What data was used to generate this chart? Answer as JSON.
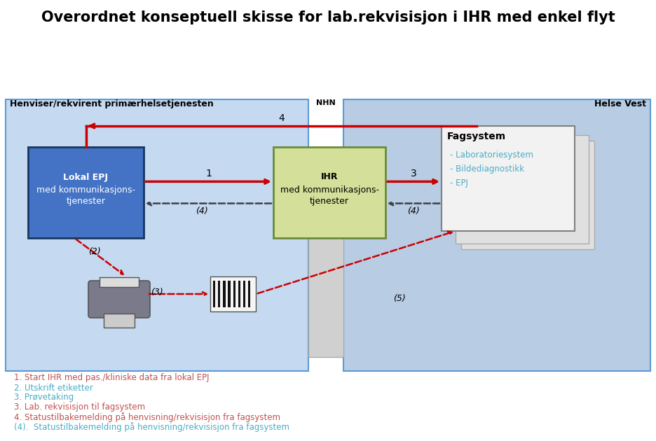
{
  "title": "Overordnet konseptuell skisse for lab.rekvisisjon i IHR med enkel flyt",
  "title_fontsize": 15,
  "bg_color": "#ffffff",
  "diagram_bg_left": "#c5d9f1",
  "diagram_bg_right": "#b8cce4",
  "diagram_border": "#5b9bd5",
  "nhn_color": "#d0d0d0",
  "epj_box_color": "#4472c4",
  "epj_box_edge": "#17375e",
  "ihr_box_color": "#d4e09a",
  "ihr_box_edge": "#6a8b3a",
  "fagsystem_color": "#f2f2f2",
  "fagsystem_edge": "#808080",
  "red_arrow": "#cc0000",
  "dark_arrow": "#404040",
  "legend_items": [
    {
      "color": "#c0504d",
      "text": "1. Start IHR med pas./kliniske data fra lokal EPJ"
    },
    {
      "color": "#4bacc6",
      "text": "2. Utskrift etiketter"
    },
    {
      "color": "#4bacc6",
      "text": "3. Prøvetaking"
    },
    {
      "color": "#c0504d",
      "text": "3. Lab. rekvisisjon til fagsystem"
    },
    {
      "color": "#c0504d",
      "text": "4. Statustilbakemelding på henvisning/rekvisisjon fra fagsystem"
    },
    {
      "color": "#4bacc6",
      "text": "(4).  Statustilbakemelding på henvisning/rekvisisjon fra fagsystem"
    }
  ]
}
